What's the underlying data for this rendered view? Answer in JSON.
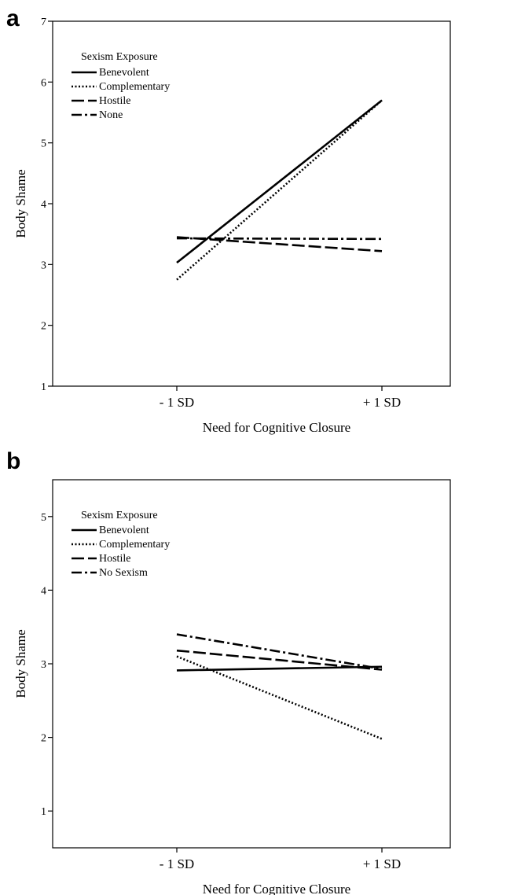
{
  "chart_data": [
    {
      "panel": "a",
      "type": "line",
      "xlabel": "Need for Cognitive Closure",
      "ylabel": "Body Shame",
      "categories": [
        "- 1 SD",
        "+ 1 SD"
      ],
      "ylim": [
        1,
        7
      ],
      "yticks": [
        1,
        2,
        3,
        4,
        5,
        6,
        7
      ],
      "grid": false,
      "legend": {
        "title": "Sexism Exposure",
        "position": "top-left"
      },
      "series": [
        {
          "name": "Benevolent",
          "style": "solid",
          "values": [
            3.03,
            5.7
          ]
        },
        {
          "name": "Complementary",
          "style": "dotted",
          "values": [
            2.75,
            5.7
          ]
        },
        {
          "name": "Hostile",
          "style": "longdash",
          "values": [
            3.45,
            3.22
          ]
        },
        {
          "name": "None",
          "style": "dashdot",
          "values": [
            3.43,
            3.42
          ]
        }
      ]
    },
    {
      "panel": "b",
      "type": "line",
      "xlabel": "Need for Cognitive Closure",
      "ylabel": "Body Shame",
      "categories": [
        "- 1 SD",
        "+ 1 SD"
      ],
      "ylim": [
        0.5,
        5.5
      ],
      "yticks": [
        1,
        2,
        3,
        4,
        5
      ],
      "grid": false,
      "legend": {
        "title": "Sexism Exposure",
        "position": "top-left"
      },
      "series": [
        {
          "name": "Benevolent",
          "style": "solid",
          "values": [
            2.91,
            2.96
          ]
        },
        {
          "name": "Complementary",
          "style": "dotted",
          "values": [
            3.1,
            1.98
          ]
        },
        {
          "name": "Hostile",
          "style": "longdash",
          "values": [
            3.18,
            2.92
          ]
        },
        {
          "name": "No Sexism",
          "style": "dashdot",
          "values": [
            3.4,
            2.93
          ]
        }
      ]
    }
  ]
}
